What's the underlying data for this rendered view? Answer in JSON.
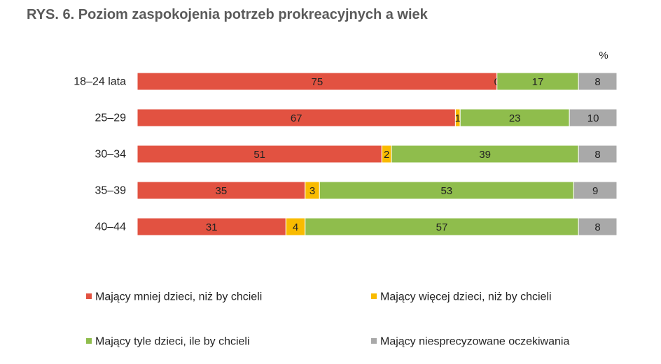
{
  "chart_data": {
    "type": "bar",
    "orientation": "horizontal",
    "stacked": true,
    "title": "RYS. 6. Poziom zaspokojenia potrzeb prokreacyjnych a wiek",
    "unit": "%",
    "categories": [
      "18–24 lata",
      "25–29",
      "30–34",
      "35–39",
      "40–44"
    ],
    "series": [
      {
        "name": "Mający mniej dzieci, niż by chcieli",
        "color": "#e25241",
        "values": [
          75,
          67,
          51,
          35,
          31
        ]
      },
      {
        "name": "Mający więcej dzieci, niż by chcieli",
        "color": "#f9bb00",
        "values": [
          0,
          1,
          2,
          3,
          4
        ]
      },
      {
        "name": "Mający tyle dzieci, ile by chcieli",
        "color": "#8fbd4c",
        "values": [
          17,
          23,
          39,
          53,
          57
        ]
      },
      {
        "name": "Mający niesprecyzowane oczekiwania",
        "color": "#a9a9a9",
        "values": [
          8,
          10,
          8,
          9,
          8
        ]
      }
    ],
    "xlim": [
      0,
      100
    ],
    "grid": false,
    "legend_position": "bottom"
  }
}
